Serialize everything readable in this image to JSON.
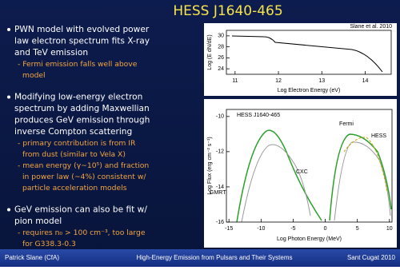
{
  "title": "HESS J1640-465",
  "bullets": [
    {
      "lines": [
        "PWN model with evolved power",
        "law electron spectrum fits X-ray",
        "and TeV emission"
      ],
      "subitems": [
        [
          "- Fermi emission falls well above",
          "model"
        ]
      ]
    },
    {
      "lines": [
        "Modifying low-energy electron",
        "spectrum by adding Maxwellian",
        "produces GeV emission through",
        "inverse Compton scattering"
      ],
      "subitems": [
        [
          "- primary contribution is from IR",
          "from dust (similar to Vela X)"
        ],
        [
          "- mean energy (γ~10⁵) and fraction",
          "in power law (~4%) consistent w/",
          "particle acceleration models"
        ]
      ]
    },
    {
      "lines": [
        "GeV emission can also be fit w/",
        "pion model"
      ],
      "subitems": [
        [
          "- requires n₀ > 100 cm⁻³, too large",
          "for G338.3-0.3"
        ]
      ]
    }
  ],
  "plots": [
    {
      "citation": "Slane et al. 2010",
      "x_label": "Log Electron Energy (eV)",
      "y_label": "Log (E dN/dE)",
      "xlim": [
        10.8,
        14.6
      ],
      "ylim": [
        23,
        31
      ],
      "xticks": [
        11,
        12,
        13,
        14
      ],
      "yticks": [
        24,
        26,
        28,
        30
      ]
    },
    {
      "annotations": [
        "HESS J1640-465",
        "Fermi",
        "HESS",
        "CXC",
        "GMRT"
      ],
      "x_label": "Log Photon Energy (MeV)",
      "y_label": "Log Flux (erg cm⁻² s⁻¹)",
      "xlim": [
        -15.4,
        10.4
      ],
      "ylim": [
        -16,
        -9.6
      ],
      "xticks": [
        -15,
        -10,
        -5,
        0,
        5,
        10
      ],
      "yticks": [
        -16,
        -14,
        -12,
        -10
      ]
    }
  ],
  "footer": {
    "left": "Patrick Slane (CfA)",
    "center": "High-Energy Emission from Pulsars and Their Systems",
    "right": "Sant Cugat 2010"
  }
}
